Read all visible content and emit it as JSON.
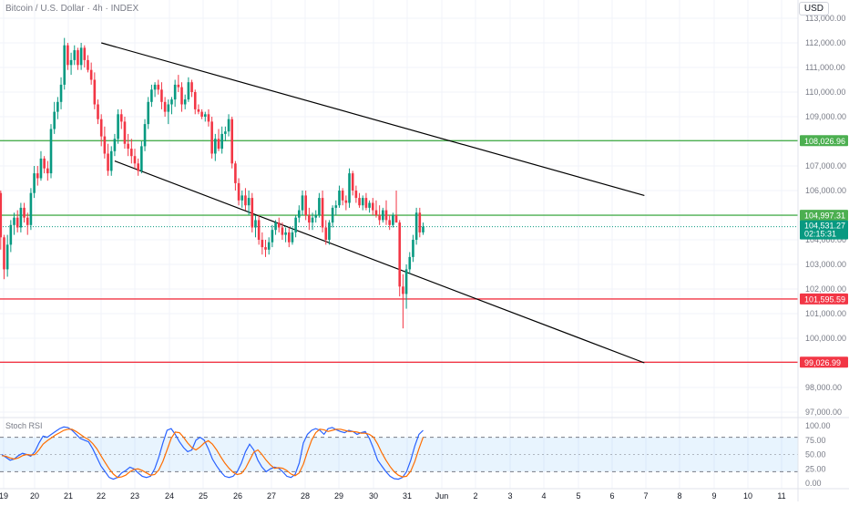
{
  "header": {
    "symbol": "Bitcoin / U.S. Dollar · 4h · INDEX",
    "currency": "USD"
  },
  "indicator": {
    "label": "Stoch RSI"
  },
  "colors": {
    "up": "#089981",
    "down": "#f23645",
    "support": "#4caf50",
    "resistance": "#f23645",
    "channel": "#000000",
    "k": "#2962ff",
    "d": "#ff6d00"
  },
  "chart_data": [
    {
      "type": "candlestick",
      "title": "Bitcoin / U.S. Dollar · 4h · INDEX",
      "y_axis": {
        "ylim": [
          96500,
          113800
        ],
        "ticks": [
          113000,
          112000,
          111000,
          110000,
          109000,
          108000,
          107000,
          106000,
          105000,
          104000,
          103000,
          102000,
          101000,
          100000,
          99000,
          98000,
          97000
        ],
        "tick_labels": [
          "113,000.00",
          "112,000.00",
          "111,000.00",
          "110,000.00",
          "109,000.00",
          "108,000.00",
          "107,000.00",
          "106,000.00",
          "105,000.00",
          "104,000.00",
          "103,000.00",
          "102,000.00",
          "101,000.00",
          "100,000.00",
          "99,000.00",
          "98,000.00",
          "97,000.00"
        ]
      },
      "x_axis": {
        "tick_labels": [
          "19",
          "20",
          "21",
          "22",
          "23",
          "24",
          "25",
          "26",
          "27",
          "28",
          "29",
          "30",
          "31",
          "Jun",
          "2",
          "3",
          "4",
          "5",
          "6",
          "7",
          "8",
          "9",
          "10",
          "11"
        ]
      },
      "candles": [
        [
          105900,
          106000,
          103600,
          104100
        ],
        [
          104100,
          104200,
          102400,
          102800
        ],
        [
          102800,
          104200,
          102500,
          103800
        ],
        [
          103800,
          104800,
          103500,
          104600
        ],
        [
          104600,
          105100,
          104200,
          104900
        ],
        [
          104900,
          105200,
          104300,
          104500
        ],
        [
          104500,
          105500,
          104300,
          105300
        ],
        [
          105300,
          105500,
          104700,
          104900
        ],
        [
          104900,
          105100,
          104200,
          104600
        ],
        [
          104600,
          106100,
          104400,
          105900
        ],
        [
          105900,
          107000,
          105700,
          106700
        ],
        [
          106700,
          107000,
          106200,
          106500
        ],
        [
          106500,
          107600,
          106400,
          107300
        ],
        [
          107300,
          107400,
          106700,
          106900
        ],
        [
          106900,
          107200,
          106400,
          106700
        ],
        [
          106700,
          108700,
          106500,
          108500
        ],
        [
          108500,
          109600,
          108300,
          109200
        ],
        [
          109200,
          109800,
          108900,
          109600
        ],
        [
          109600,
          110600,
          109300,
          110300
        ],
        [
          110300,
          112200,
          110100,
          111900
        ],
        [
          111900,
          112000,
          110900,
          111100
        ],
        [
          111100,
          111600,
          110700,
          111300
        ],
        [
          111300,
          111900,
          111100,
          111700
        ],
        [
          111700,
          111800,
          110900,
          111100
        ],
        [
          111100,
          112000,
          110900,
          111800
        ],
        [
          111800,
          111900,
          111000,
          111300
        ],
        [
          111300,
          111500,
          110800,
          110900
        ],
        [
          110900,
          111200,
          110300,
          110500
        ],
        [
          110500,
          110800,
          109300,
          109500
        ],
        [
          109500,
          109700,
          108700,
          108900
        ],
        [
          108900,
          109100,
          107800,
          108200
        ],
        [
          108200,
          108600,
          107300,
          107500
        ],
        [
          107500,
          107900,
          106600,
          106800
        ],
        [
          106800,
          107800,
          106600,
          107600
        ],
        [
          107600,
          108300,
          107400,
          108100
        ],
        [
          108100,
          109300,
          107900,
          109100
        ],
        [
          109100,
          109300,
          108500,
          108800
        ],
        [
          108800,
          109000,
          107700,
          107900
        ],
        [
          107900,
          108300,
          107400,
          107700
        ],
        [
          107700,
          108100,
          107100,
          107400
        ],
        [
          107400,
          107700,
          106900,
          107100
        ],
        [
          107100,
          107300,
          106600,
          106800
        ],
        [
          106800,
          108000,
          106700,
          107800
        ],
        [
          107800,
          108900,
          107600,
          108700
        ],
        [
          108700,
          109800,
          108500,
          109600
        ],
        [
          109600,
          110300,
          109400,
          110100
        ],
        [
          110100,
          110400,
          109800,
          110300
        ],
        [
          110300,
          110500,
          109900,
          110100
        ],
        [
          110100,
          110400,
          109300,
          109600
        ],
        [
          109600,
          109800,
          109000,
          109200
        ],
        [
          109200,
          109700,
          108700,
          109500
        ],
        [
          109500,
          109800,
          109100,
          109700
        ],
        [
          109700,
          110500,
          109400,
          110300
        ],
        [
          110300,
          110700,
          110000,
          110200
        ],
        [
          110200,
          110400,
          109200,
          109500
        ],
        [
          109500,
          109900,
          109300,
          109700
        ],
        [
          109700,
          110600,
          109600,
          110400
        ],
        [
          110400,
          110500,
          109800,
          110000
        ],
        [
          110000,
          110100,
          109100,
          109300
        ],
        [
          109300,
          109500,
          109100,
          109200
        ],
        [
          109200,
          109300,
          108900,
          109000
        ],
        [
          109000,
          109200,
          108800,
          109100
        ],
        [
          109100,
          109300,
          108600,
          108800
        ],
        [
          108800,
          109000,
          107300,
          107500
        ],
        [
          107500,
          108300,
          107200,
          108100
        ],
        [
          108100,
          108500,
          107600,
          107700
        ],
        [
          107700,
          108600,
          107500,
          108300
        ],
        [
          108300,
          108600,
          108000,
          108400
        ],
        [
          108400,
          109100,
          108200,
          108900
        ],
        [
          108900,
          109000,
          106900,
          107100
        ],
        [
          107100,
          107200,
          106000,
          106300
        ],
        [
          106300,
          106500,
          105400,
          105600
        ],
        [
          105600,
          106000,
          105300,
          105800
        ],
        [
          105800,
          106100,
          105200,
          105400
        ],
        [
          105400,
          106000,
          105000,
          105700
        ],
        [
          105700,
          105900,
          104300,
          104500
        ],
        [
          104500,
          105000,
          104100,
          104800
        ],
        [
          104800,
          105000,
          103800,
          104000
        ],
        [
          104000,
          104300,
          103400,
          103700
        ],
        [
          103700,
          104000,
          103300,
          103600
        ],
        [
          103600,
          104100,
          103400,
          103900
        ],
        [
          103900,
          104600,
          103700,
          104400
        ],
        [
          104400,
          104800,
          104200,
          104700
        ],
        [
          104700,
          104900,
          104300,
          104500
        ],
        [
          104500,
          104700,
          104000,
          104200
        ],
        [
          104200,
          104500,
          103900,
          104300
        ],
        [
          104300,
          104500,
          103700,
          103900
        ],
        [
          103900,
          104500,
          103800,
          104300
        ],
        [
          104300,
          105000,
          104100,
          104900
        ],
        [
          104900,
          105400,
          104700,
          105200
        ],
        [
          105200,
          106000,
          105000,
          105800
        ],
        [
          105800,
          106000,
          104800,
          105000
        ],
        [
          105000,
          105300,
          104400,
          104700
        ],
        [
          104700,
          105100,
          104400,
          104900
        ],
        [
          104900,
          105200,
          104700,
          105000
        ],
        [
          105000,
          105900,
          104900,
          105700
        ],
        [
          105700,
          106000,
          104300,
          104500
        ],
        [
          104500,
          104800,
          103800,
          104000
        ],
        [
          104000,
          104800,
          103800,
          104700
        ],
        [
          104700,
          105400,
          104500,
          105300
        ],
        [
          105300,
          105600,
          105000,
          105400
        ],
        [
          105400,
          106200,
          105300,
          106000
        ],
        [
          106000,
          106100,
          105400,
          105600
        ],
        [
          105600,
          105800,
          105200,
          105500
        ],
        [
          105500,
          106900,
          105300,
          106700
        ],
        [
          106700,
          106800,
          105800,
          106000
        ],
        [
          106000,
          106200,
          105500,
          105700
        ],
        [
          105700,
          105900,
          105300,
          105400
        ],
        [
          105400,
          105800,
          105200,
          105700
        ],
        [
          105700,
          105900,
          105200,
          105300
        ],
        [
          105300,
          105600,
          105100,
          105500
        ],
        [
          105500,
          105700,
          105000,
          105200
        ],
        [
          105200,
          105600,
          104900,
          105000
        ],
        [
          105000,
          105400,
          104600,
          104800
        ],
        [
          104800,
          105300,
          104700,
          105200
        ],
        [
          105200,
          105600,
          104600,
          104800
        ],
        [
          104800,
          105000,
          104400,
          104600
        ],
        [
          104600,
          105100,
          104500,
          105000
        ],
        [
          105000,
          106000,
          104700,
          104700
        ],
        [
          104700,
          104800,
          101700,
          102100
        ],
        [
          102100,
          102600,
          100400,
          101800
        ],
        [
          101800,
          103000,
          101200,
          102800
        ],
        [
          102800,
          103500,
          102600,
          103300
        ],
        [
          103300,
          104200,
          103100,
          104000
        ],
        [
          104000,
          105300,
          103800,
          105100
        ],
        [
          105100,
          105300,
          104100,
          104300
        ],
        [
          104300,
          104700,
          104200,
          104530
        ]
      ],
      "horizontal_levels": [
        {
          "price": 108026.96,
          "label": "108,026.96",
          "kind": "support"
        },
        {
          "price": 104997.31,
          "label": "104,997.31",
          "kind": "support"
        },
        {
          "price": 101595.59,
          "label": "101,595.59",
          "kind": "resistance"
        },
        {
          "price": 99026.99,
          "label": "99,026.99",
          "kind": "resistance"
        }
      ],
      "channel_lines": [
        {
          "from": {
            "bar": 30,
            "price": 112000
          },
          "to": {
            "bar": 192,
            "price": 105800
          }
        },
        {
          "from": {
            "bar": 34,
            "price": 107200
          },
          "to": {
            "bar": 192,
            "price": 99000
          }
        }
      ],
      "last_price": {
        "price": 104531.27,
        "label": "104,531.27",
        "countdown": "02:15:31"
      }
    },
    {
      "type": "line",
      "title": "Stoch RSI",
      "y_axis": {
        "ticks": [
          100,
          75,
          50,
          25,
          0
        ],
        "tick_labels": [
          "100.00",
          "75.00",
          "50.00",
          "25.00",
          "0.00"
        ],
        "ylim": [
          -5,
          104
        ]
      },
      "band": [
        20,
        80
      ],
      "series": [
        {
          "values": [
            50,
            45,
            40,
            42,
            48,
            52,
            50,
            47,
            55,
            70,
            82,
            80,
            85,
            90,
            95,
            98,
            97,
            92,
            85,
            78,
            75,
            72,
            60,
            45,
            30,
            20,
            10,
            7,
            10,
            18,
            22,
            28,
            25,
            18,
            12,
            10,
            12,
            25,
            45,
            70,
            92,
            95,
            85,
            72,
            62,
            55,
            58,
            75,
            80,
            75,
            60,
            42,
            30,
            20,
            12,
            10,
            12,
            20,
            35,
            55,
            68,
            58,
            40,
            28,
            20,
            25,
            28,
            26,
            20,
            12,
            10,
            15,
            35,
            70,
            85,
            92,
            95,
            92,
            85,
            95,
            97,
            93,
            90,
            88,
            92,
            90,
            85,
            88,
            90,
            78,
            60,
            40,
            30,
            20,
            12,
            8,
            7,
            10,
            20,
            40,
            65,
            85,
            92
          ]
        },
        {
          "values": [
            48,
            47,
            44,
            42,
            44,
            48,
            50,
            49,
            50,
            58,
            68,
            74,
            79,
            84,
            88,
            92,
            94,
            94,
            90,
            85,
            80,
            76,
            69,
            60,
            48,
            36,
            25,
            16,
            10,
            11,
            14,
            20,
            24,
            25,
            22,
            18,
            14,
            15,
            23,
            38,
            58,
            78,
            89,
            88,
            80,
            70,
            62,
            58,
            63,
            70,
            74,
            68,
            58,
            46,
            35,
            26,
            19,
            15,
            17,
            26,
            40,
            54,
            58,
            50,
            40,
            32,
            26,
            27,
            26,
            22,
            16,
            13,
            18,
            33,
            55,
            75,
            88,
            94,
            93,
            90,
            92,
            94,
            94,
            92,
            90,
            90,
            89,
            87,
            87,
            85,
            80,
            68,
            53,
            40,
            29,
            20,
            14,
            11,
            12,
            21,
            38,
            60,
            80
          ]
        }
      ]
    }
  ]
}
